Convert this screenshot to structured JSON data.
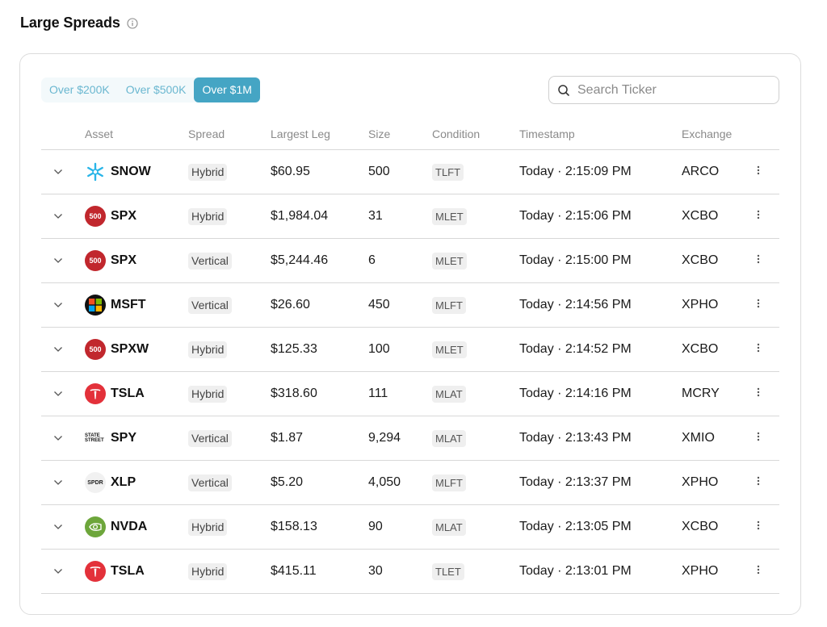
{
  "header": {
    "title": "Large Spreads"
  },
  "filters": [
    {
      "label": "Over $200K",
      "active": false
    },
    {
      "label": "Over $500K",
      "active": false
    },
    {
      "label": "Over $1M",
      "active": true
    }
  ],
  "search": {
    "placeholder": "Search Ticker",
    "value": ""
  },
  "columns": {
    "asset": "Asset",
    "spread": "Spread",
    "largest_leg": "Largest Leg",
    "size": "Size",
    "condition": "Condition",
    "timestamp": "Timestamp",
    "exchange": "Exchange"
  },
  "colors": {
    "accent": "#45a5c4",
    "accent_light": "#6ab7d0"
  },
  "rows": [
    {
      "logo": "snowflake-logo",
      "logo_text": "",
      "ticker": "SNOW",
      "spread": "Hybrid",
      "leg": "$60.95",
      "size": "500",
      "condition": "TLFT",
      "timestamp": "Today · 2:15:09 PM",
      "exchange": "ARCO"
    },
    {
      "logo": "sp500-logo",
      "logo_text": "500",
      "ticker": "SPX",
      "spread": "Hybrid",
      "leg": "$1,984.04",
      "size": "31",
      "condition": "MLET",
      "timestamp": "Today · 2:15:06 PM",
      "exchange": "XCBO"
    },
    {
      "logo": "sp500-logo",
      "logo_text": "500",
      "ticker": "SPX",
      "spread": "Vertical",
      "leg": "$5,244.46",
      "size": "6",
      "condition": "MLET",
      "timestamp": "Today · 2:15:00 PM",
      "exchange": "XCBO"
    },
    {
      "logo": "microsoft-logo",
      "logo_text": "",
      "ticker": "MSFT",
      "spread": "Vertical",
      "leg": "$26.60",
      "size": "450",
      "condition": "MLFT",
      "timestamp": "Today · 2:14:56 PM",
      "exchange": "XPHO"
    },
    {
      "logo": "sp500-logo",
      "logo_text": "500",
      "ticker": "SPXW",
      "spread": "Hybrid",
      "leg": "$125.33",
      "size": "100",
      "condition": "MLET",
      "timestamp": "Today · 2:14:52 PM",
      "exchange": "XCBO"
    },
    {
      "logo": "tesla-logo",
      "logo_text": "",
      "ticker": "TSLA",
      "spread": "Hybrid",
      "leg": "$318.60",
      "size": "111",
      "condition": "MLAT",
      "timestamp": "Today · 2:14:16 PM",
      "exchange": "MCRY"
    },
    {
      "logo": "state-street-logo",
      "logo_text": "STATE STREET",
      "ticker": "SPY",
      "spread": "Vertical",
      "leg": "$1.87",
      "size": "9,294",
      "condition": "MLAT",
      "timestamp": "Today · 2:13:43 PM",
      "exchange": "XMIO"
    },
    {
      "logo": "spdr-logo",
      "logo_text": "SPDR",
      "ticker": "XLP",
      "spread": "Vertical",
      "leg": "$5.20",
      "size": "4,050",
      "condition": "MLFT",
      "timestamp": "Today · 2:13:37 PM",
      "exchange": "XPHO"
    },
    {
      "logo": "nvidia-logo",
      "logo_text": "",
      "ticker": "NVDA",
      "spread": "Hybrid",
      "leg": "$158.13",
      "size": "90",
      "condition": "MLAT",
      "timestamp": "Today · 2:13:05 PM",
      "exchange": "XCBO"
    },
    {
      "logo": "tesla-logo",
      "logo_text": "",
      "ticker": "TSLA",
      "spread": "Hybrid",
      "leg": "$415.11",
      "size": "30",
      "condition": "TLET",
      "timestamp": "Today · 2:13:01 PM",
      "exchange": "XPHO"
    }
  ]
}
